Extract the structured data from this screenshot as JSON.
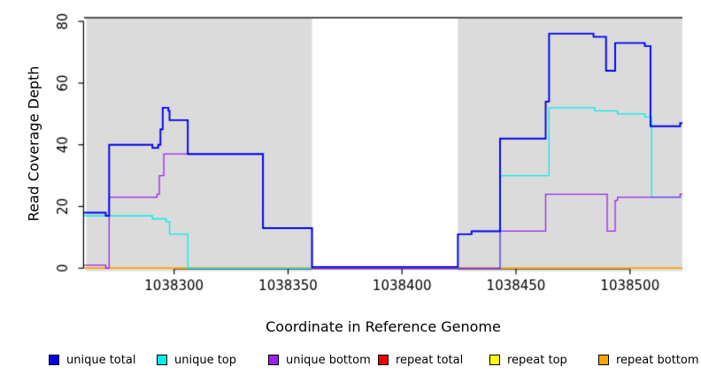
{
  "chart_data": {
    "type": "line",
    "subtype": "step-coverage-plot",
    "title": "",
    "xlabel": "Coordinate in Reference Genome",
    "ylabel": "Read Coverage Depth",
    "xlim": [
      1038260.5,
      1038523
    ],
    "ylim": [
      0,
      81.2
    ],
    "x_ticks": [
      1038300,
      1038350,
      1038400,
      1038450,
      1038500
    ],
    "y_ticks": [
      0,
      20,
      40,
      60,
      80
    ],
    "grid": false,
    "panel_background": "#ffffff",
    "shaded_region_color": "#dbdbdb",
    "shaded_regions": [
      [
        1038261.5,
        1038360.5
      ],
      [
        1038424.5,
        1038523
      ]
    ],
    "white_gap_region": [
      1038360.5,
      1038424.5
    ],
    "legend_position": "bottom",
    "series": [
      {
        "name": "unique total",
        "color": "#0000EE",
        "steps": [
          [
            1038260.5,
            18
          ],
          [
            1038270,
            17
          ],
          [
            1038271.5,
            40
          ],
          [
            1038290.5,
            39
          ],
          [
            1038293,
            40
          ],
          [
            1038294,
            45
          ],
          [
            1038295,
            52
          ],
          [
            1038297.5,
            51
          ],
          [
            1038298,
            48
          ],
          [
            1038306,
            37
          ],
          [
            1038339,
            13
          ],
          [
            1038360.5,
            0
          ],
          [
            1038424.5,
            11
          ],
          [
            1038430.5,
            12
          ],
          [
            1038443,
            42
          ],
          [
            1038463,
            54
          ],
          [
            1038464.5,
            76
          ],
          [
            1038484,
            75
          ],
          [
            1038489.5,
            64
          ],
          [
            1038493.5,
            73
          ],
          [
            1038506.5,
            72
          ],
          [
            1038509,
            46
          ],
          [
            1038522,
            47
          ]
        ]
      },
      {
        "name": "unique top",
        "color": "#00EEEE",
        "steps": [
          [
            1038260.5,
            17
          ],
          [
            1038290.5,
            16
          ],
          [
            1038296.5,
            15
          ],
          [
            1038298,
            11
          ],
          [
            1038306,
            0
          ],
          [
            1038443,
            30
          ],
          [
            1038464.5,
            52
          ],
          [
            1038484.5,
            51
          ],
          [
            1038494.5,
            50
          ],
          [
            1038506.5,
            49
          ],
          [
            1038509.5,
            23
          ]
        ]
      },
      {
        "name": "unique bottom",
        "color": "#A020F0",
        "steps": [
          [
            1038260.5,
            1
          ],
          [
            1038270,
            0
          ],
          [
            1038271.5,
            23
          ],
          [
            1038292.5,
            24
          ],
          [
            1038293.5,
            30
          ],
          [
            1038295.5,
            37
          ],
          [
            1038339,
            13
          ],
          [
            1038360.5,
            0
          ],
          [
            1038443,
            12
          ],
          [
            1038463,
            24
          ],
          [
            1038490,
            12
          ],
          [
            1038493.5,
            22
          ],
          [
            1038494.5,
            23
          ],
          [
            1038522,
            24
          ]
        ]
      },
      {
        "name": "repeat total",
        "color": "#EE0000",
        "steps": [
          [
            1038260.5,
            0
          ]
        ]
      },
      {
        "name": "repeat top",
        "color": "#FFFF00",
        "steps": [
          [
            1038260.5,
            0
          ]
        ]
      },
      {
        "name": "repeat bottom",
        "color": "#FFA500",
        "steps": [
          [
            1038260.5,
            0
          ]
        ]
      }
    ]
  }
}
